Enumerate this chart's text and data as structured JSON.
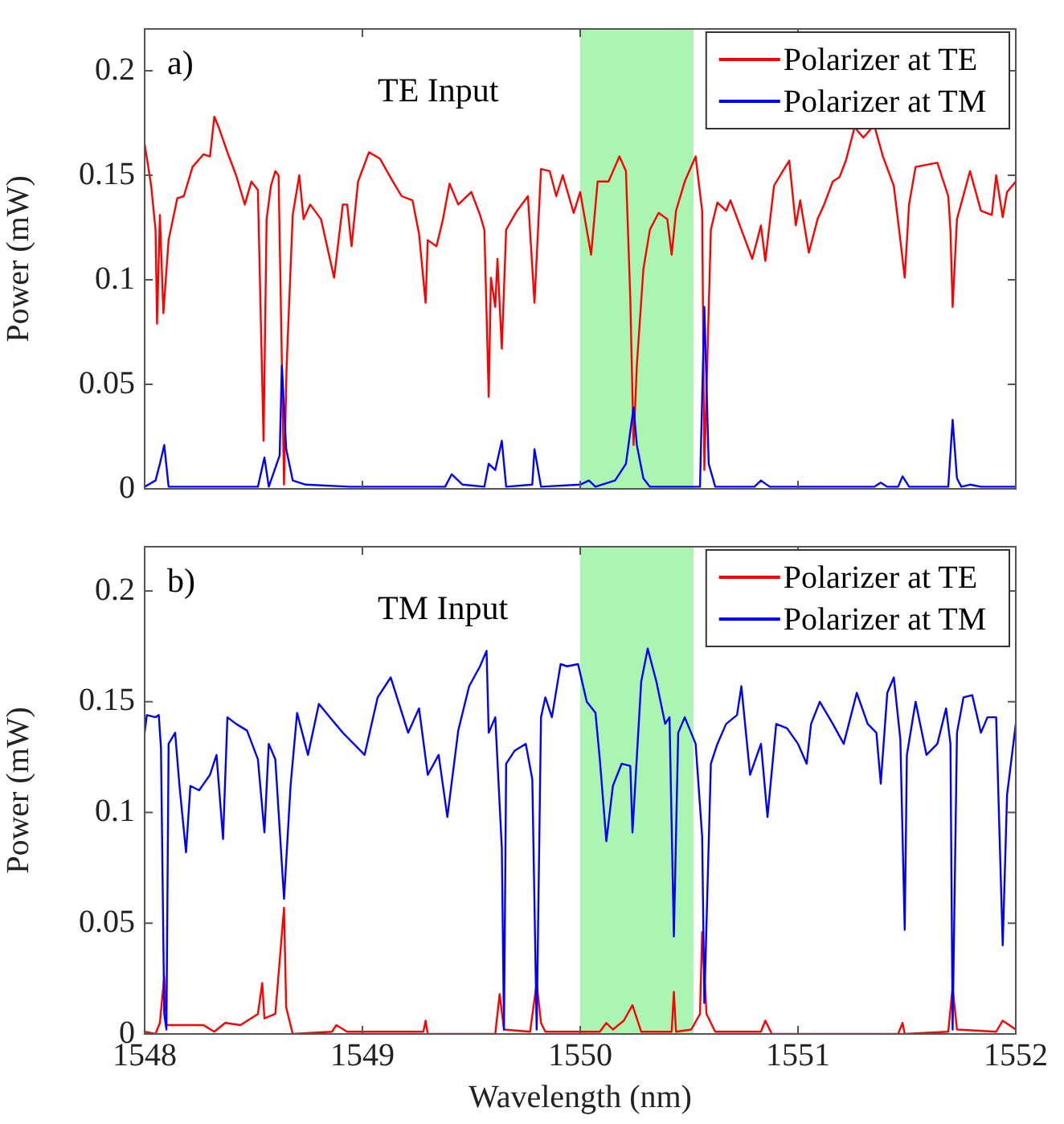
{
  "chart_data": [
    {
      "type": "line",
      "ylabel": "Power (mW)",
      "annotations": [
        "a)",
        "TE Input"
      ],
      "xlim": [
        1548,
        1552
      ],
      "xticks": [
        1548,
        1549,
        1550,
        1551,
        1552
      ],
      "ylim": [
        0,
        0.22
      ],
      "yticks": [
        0,
        0.05,
        0.1,
        0.15,
        0.2
      ],
      "tick_labels": "y",
      "legend": "top right",
      "grid": false,
      "marker": "none",
      "line_style": "solid",
      "bands": [
        {
          "axis": "x",
          "from": 1550,
          "to": 1550.52,
          "color": "#aaf5b2"
        }
      ],
      "series": [
        {
          "name": "Polarizer at TE",
          "color": "#ff0000",
          "x": [
            1548.0,
            1548.03,
            1548.05,
            1548.057,
            1548.07,
            1548.086,
            1548.11,
            1548.15,
            1548.18,
            1548.22,
            1548.27,
            1548.3,
            1548.32,
            1548.34,
            1548.38,
            1548.42,
            1548.46,
            1548.49,
            1548.52,
            1548.546,
            1548.56,
            1548.58,
            1548.6,
            1548.615,
            1548.64,
            1548.652,
            1548.68,
            1548.71,
            1548.73,
            1548.76,
            1548.81,
            1548.87,
            1548.91,
            1548.93,
            1548.95,
            1548.98,
            1549.03,
            1549.08,
            1549.14,
            1549.18,
            1549.23,
            1549.26,
            1549.29,
            1549.3,
            1549.34,
            1549.37,
            1549.4,
            1549.44,
            1549.5,
            1549.54,
            1549.56,
            1549.58,
            1549.59,
            1549.61,
            1549.62,
            1549.64,
            1549.66,
            1549.71,
            1549.76,
            1549.79,
            1549.82,
            1549.86,
            1549.89,
            1549.92,
            1549.97,
            1550.0,
            1550.05,
            1550.08,
            1550.13,
            1550.18,
            1550.21,
            1550.23,
            1550.245,
            1550.26,
            1550.29,
            1550.32,
            1550.36,
            1550.4,
            1550.42,
            1550.44,
            1550.48,
            1550.53,
            1550.56,
            1550.57,
            1550.6,
            1550.63,
            1550.67,
            1550.69,
            1550.74,
            1550.79,
            1550.83,
            1550.85,
            1550.89,
            1550.93,
            1550.96,
            1550.99,
            1551.01,
            1551.05,
            1551.09,
            1551.12,
            1551.16,
            1551.19,
            1551.22,
            1551.26,
            1551.3,
            1551.35,
            1551.39,
            1551.44,
            1551.47,
            1551.49,
            1551.51,
            1551.54,
            1551.64,
            1551.69,
            1551.7,
            1551.71,
            1551.73,
            1551.79,
            1551.84,
            1551.89,
            1551.91,
            1551.94,
            1551.96,
            1552.0
          ],
          "values": [
            0.165,
            0.145,
            0.124,
            0.079,
            0.131,
            0.084,
            0.119,
            0.139,
            0.14,
            0.154,
            0.16,
            0.159,
            0.178,
            0.173,
            0.161,
            0.15,
            0.136,
            0.147,
            0.143,
            0.023,
            0.129,
            0.145,
            0.152,
            0.15,
            0.002,
            0.059,
            0.131,
            0.15,
            0.129,
            0.136,
            0.129,
            0.101,
            0.136,
            0.136,
            0.116,
            0.147,
            0.161,
            0.158,
            0.147,
            0.14,
            0.138,
            0.122,
            0.089,
            0.119,
            0.116,
            0.129,
            0.146,
            0.136,
            0.142,
            0.131,
            0.124,
            0.044,
            0.101,
            0.087,
            0.11,
            0.067,
            0.124,
            0.133,
            0.14,
            0.089,
            0.153,
            0.152,
            0.14,
            0.15,
            0.132,
            0.142,
            0.112,
            0.147,
            0.147,
            0.159,
            0.152,
            0.091,
            0.021,
            0.059,
            0.105,
            0.124,
            0.132,
            0.129,
            0.112,
            0.133,
            0.147,
            0.159,
            0.133,
            0.009,
            0.124,
            0.137,
            0.133,
            0.138,
            0.124,
            0.11,
            0.126,
            0.109,
            0.145,
            0.152,
            0.157,
            0.126,
            0.138,
            0.113,
            0.129,
            0.136,
            0.147,
            0.149,
            0.157,
            0.173,
            0.168,
            0.174,
            0.159,
            0.145,
            0.119,
            0.101,
            0.136,
            0.154,
            0.156,
            0.14,
            0.124,
            0.087,
            0.129,
            0.152,
            0.133,
            0.131,
            0.15,
            0.13,
            0.142,
            0.147
          ]
        },
        {
          "name": "Polarizer at TM",
          "color": "#0000ff",
          "x": [
            1548.0,
            1548.05,
            1548.07,
            1548.09,
            1548.11,
            1548.52,
            1548.55,
            1548.57,
            1548.62,
            1548.63,
            1548.65,
            1548.68,
            1548.74,
            1548.94,
            1549.38,
            1549.41,
            1549.46,
            1549.56,
            1549.58,
            1549.61,
            1549.64,
            1549.66,
            1549.78,
            1549.79,
            1549.82,
            1550.0,
            1550.04,
            1550.07,
            1550.16,
            1550.21,
            1550.245,
            1550.26,
            1550.29,
            1550.32,
            1550.55,
            1550.57,
            1550.59,
            1550.62,
            1550.8,
            1550.83,
            1550.87,
            1551.35,
            1551.38,
            1551.41,
            1551.46,
            1551.48,
            1551.51,
            1551.69,
            1551.71,
            1551.73,
            1551.75,
            1551.79,
            1551.84,
            1552.0
          ],
          "values": [
            0.001,
            0.004,
            0.012,
            0.021,
            0.001,
            0.001,
            0.015,
            0.001,
            0.016,
            0.059,
            0.019,
            0.004,
            0.002,
            0.001,
            0.001,
            0.007,
            0.002,
            0.001,
            0.012,
            0.009,
            0.023,
            0.001,
            0.002,
            0.019,
            0.001,
            0.002,
            0.004,
            0.001,
            0.004,
            0.012,
            0.039,
            0.021,
            0.005,
            0.001,
            0.001,
            0.087,
            0.012,
            0.001,
            0.001,
            0.004,
            0.001,
            0.001,
            0.003,
            0.001,
            0.001,
            0.006,
            0.001,
            0.001,
            0.033,
            0.005,
            0.001,
            0.002,
            0.001,
            0.001
          ]
        }
      ]
    },
    {
      "type": "line",
      "xlabel": "Wavelength (nm)",
      "ylabel": "Power (mW)",
      "annotations": [
        "b)",
        "TM Input"
      ],
      "xlim": [
        1548,
        1552
      ],
      "xticks": [
        1548,
        1549,
        1550,
        1551,
        1552
      ],
      "ylim": [
        0,
        0.22
      ],
      "yticks": [
        0,
        0.05,
        0.1,
        0.15,
        0.2
      ],
      "legend": "top right",
      "grid": false,
      "marker": "none",
      "line_style": "solid",
      "bands": [
        {
          "axis": "x",
          "from": 1550,
          "to": 1550.52,
          "color": "#aaf5b2"
        }
      ],
      "series": [
        {
          "name": "Polarizer at TE",
          "color": "#ff0000",
          "x": [
            1548.0,
            1548.05,
            1548.07,
            1548.09,
            1548.1,
            1548.17,
            1548.27,
            1548.32,
            1548.37,
            1548.44,
            1548.52,
            1548.54,
            1548.55,
            1548.6,
            1548.62,
            1548.64,
            1548.65,
            1548.68,
            1548.86,
            1548.88,
            1548.93,
            1549.28,
            1549.29,
            1549.3,
            1549.61,
            1549.63,
            1549.65,
            1549.77,
            1549.8,
            1549.82,
            1549.84,
            1550.09,
            1550.12,
            1550.15,
            1550.2,
            1550.24,
            1550.28,
            1550.42,
            1550.43,
            1550.44,
            1550.51,
            1550.55,
            1550.56,
            1550.58,
            1550.62,
            1550.83,
            1550.85,
            1550.88,
            1551.46,
            1551.48,
            1551.49,
            1551.69,
            1551.71,
            1551.73,
            1551.91,
            1551.94,
            1551.97,
            1552.0
          ],
          "values": [
            0.001,
            0.0,
            0.005,
            0.026,
            0.004,
            0.004,
            0.004,
            0.001,
            0.005,
            0.004,
            0.009,
            0.023,
            0.007,
            0.009,
            0.033,
            0.057,
            0.012,
            0.0,
            0.001,
            0.004,
            0.001,
            0.001,
            0.006,
            0.0,
            0.0,
            0.018,
            0.002,
            0.001,
            0.023,
            0.005,
            0.001,
            0.001,
            0.005,
            0.002,
            0.006,
            0.013,
            0.001,
            0.001,
            0.019,
            0.001,
            0.002,
            0.009,
            0.046,
            0.009,
            0.001,
            0.001,
            0.006,
            0.0,
            0.0,
            0.005,
            0.0,
            0.001,
            0.021,
            0.002,
            0.001,
            0.006,
            0.004,
            0.002
          ]
        },
        {
          "name": "Polarizer at TM",
          "color": "#0000ff",
          "x": [
            1548.0,
            1548.01,
            1548.05,
            1548.065,
            1548.075,
            1548.09,
            1548.1,
            1548.11,
            1548.14,
            1548.16,
            1548.19,
            1548.21,
            1548.25,
            1548.3,
            1548.33,
            1548.36,
            1548.38,
            1548.42,
            1548.47,
            1548.52,
            1548.55,
            1548.57,
            1548.6,
            1548.64,
            1548.67,
            1548.7,
            1548.75,
            1548.8,
            1548.85,
            1548.91,
            1548.96,
            1549.01,
            1549.07,
            1549.13,
            1549.21,
            1549.26,
            1549.3,
            1549.35,
            1549.39,
            1549.44,
            1549.49,
            1549.54,
            1549.57,
            1549.58,
            1549.61,
            1549.64,
            1549.65,
            1549.66,
            1549.7,
            1549.75,
            1549.78,
            1549.8,
            1549.82,
            1549.84,
            1549.87,
            1549.91,
            1549.94,
            1549.99,
            1550.03,
            1550.07,
            1550.09,
            1550.12,
            1550.15,
            1550.19,
            1550.23,
            1550.24,
            1550.28,
            1550.31,
            1550.35,
            1550.39,
            1550.41,
            1550.43,
            1550.45,
            1550.48,
            1550.53,
            1550.56,
            1550.57,
            1550.6,
            1550.63,
            1550.67,
            1550.72,
            1550.74,
            1550.78,
            1550.83,
            1550.86,
            1550.9,
            1550.95,
            1551.0,
            1551.04,
            1551.06,
            1551.1,
            1551.16,
            1551.21,
            1551.27,
            1551.32,
            1551.36,
            1551.38,
            1551.41,
            1551.44,
            1551.47,
            1551.49,
            1551.5,
            1551.54,
            1551.59,
            1551.64,
            1551.68,
            1551.7,
            1551.71,
            1551.73,
            1551.76,
            1551.8,
            1551.84,
            1551.87,
            1551.91,
            1551.94,
            1551.96,
            1552.0
          ],
          "values": [
            0.136,
            0.144,
            0.143,
            0.144,
            0.129,
            0.009,
            0.002,
            0.131,
            0.136,
            0.112,
            0.082,
            0.112,
            0.11,
            0.117,
            0.126,
            0.088,
            0.143,
            0.14,
            0.137,
            0.124,
            0.091,
            0.131,
            0.124,
            0.061,
            0.112,
            0.145,
            0.126,
            0.149,
            0.143,
            0.136,
            0.131,
            0.126,
            0.152,
            0.161,
            0.136,
            0.147,
            0.117,
            0.126,
            0.098,
            0.137,
            0.157,
            0.166,
            0.173,
            0.136,
            0.143,
            0.084,
            0.002,
            0.122,
            0.128,
            0.131,
            0.115,
            0.002,
            0.143,
            0.152,
            0.143,
            0.167,
            0.166,
            0.167,
            0.15,
            0.145,
            0.124,
            0.087,
            0.112,
            0.122,
            0.121,
            0.091,
            0.159,
            0.174,
            0.159,
            0.14,
            0.143,
            0.044,
            0.136,
            0.143,
            0.131,
            0.089,
            0.014,
            0.122,
            0.131,
            0.14,
            0.144,
            0.157,
            0.117,
            0.131,
            0.098,
            0.14,
            0.138,
            0.131,
            0.122,
            0.14,
            0.15,
            0.14,
            0.131,
            0.154,
            0.14,
            0.136,
            0.113,
            0.154,
            0.161,
            0.133,
            0.047,
            0.126,
            0.15,
            0.126,
            0.131,
            0.147,
            0.131,
            0.002,
            0.136,
            0.152,
            0.153,
            0.136,
            0.143,
            0.143,
            0.04,
            0.108,
            0.14
          ]
        }
      ]
    }
  ]
}
